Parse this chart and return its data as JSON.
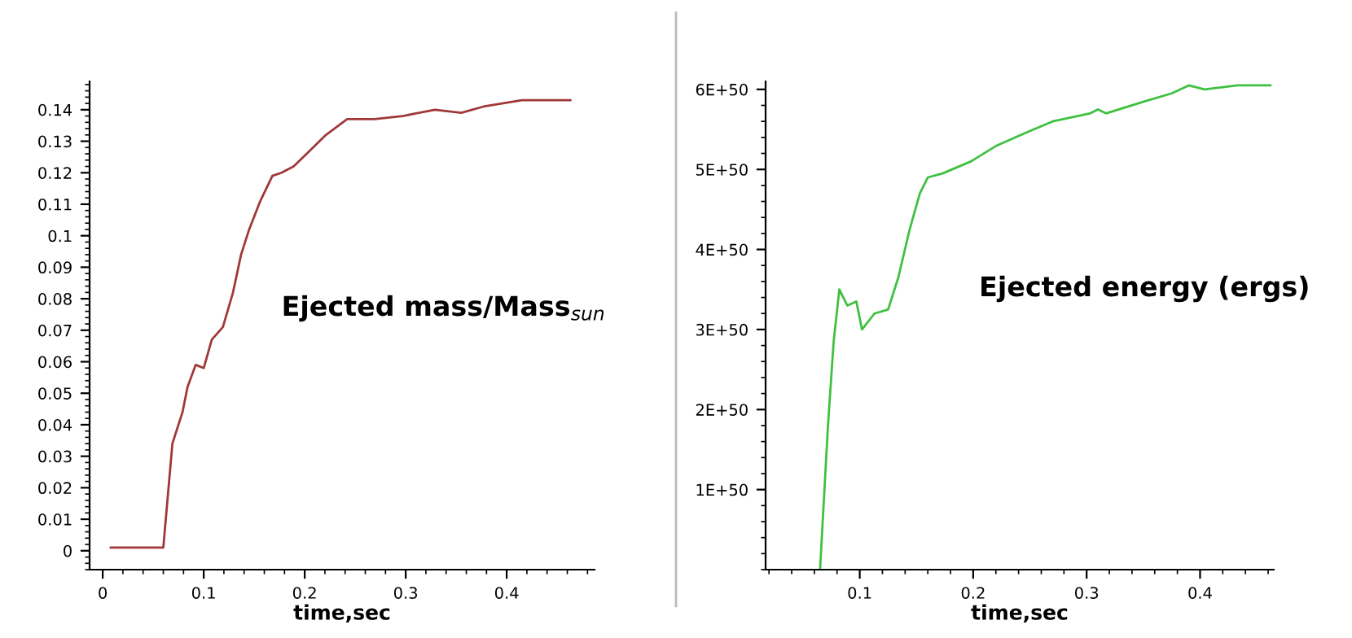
{
  "chart_data": [
    {
      "type": "line",
      "xlabel": "time,sec",
      "annotations": [
        "Ejected mass/Mass$_{sun}$"
      ],
      "xlim": [
        -0.013,
        0.487
      ],
      "ylim": [
        -0.006,
        0.149
      ],
      "xticks": [
        0,
        0.1,
        0.2,
        0.3,
        0.4
      ],
      "yticks": [
        0,
        0.01,
        0.02,
        0.03,
        0.04,
        0.05,
        0.06,
        0.07,
        0.08,
        0.09,
        0.1,
        0.11,
        0.12,
        0.13,
        0.14
      ],
      "series": [
        {
          "color": "#a03838",
          "x": [
            0.008,
            0.06,
            0.069,
            0.079,
            0.084,
            0.092,
            0.1,
            0.108,
            0.119,
            0.129,
            0.137,
            0.145,
            0.156,
            0.168,
            0.177,
            0.189,
            0.205,
            0.221,
            0.242,
            0.269,
            0.297,
            0.329,
            0.355,
            0.377,
            0.415,
            0.442,
            0.463
          ],
          "values": [
            0.001,
            0.001,
            0.034,
            0.044,
            0.052,
            0.059,
            0.058,
            0.067,
            0.071,
            0.082,
            0.094,
            0.102,
            0.111,
            0.119,
            0.12,
            0.122,
            0.127,
            0.132,
            0.137,
            0.137,
            0.138,
            0.14,
            0.139,
            0.141,
            0.143,
            0.143,
            0.143
          ]
        }
      ]
    },
    {
      "type": "line",
      "xlabel": "time,sec",
      "annotations": [
        "Ejected energy (ergs)"
      ],
      "xlim": [
        0.017,
        0.465
      ],
      "ylim": [
        0,
        6.1e+50
      ],
      "xticks": [
        0.1,
        0.2,
        0.3,
        0.4
      ],
      "yticks": [
        {
          "value": 1e+50,
          "label": "1E+50"
        },
        {
          "value": 2e+50,
          "label": "2E+50"
        },
        {
          "value": 3e+50,
          "label": "3E+50"
        },
        {
          "value": 4e+50,
          "label": "4E+50"
        },
        {
          "value": 5e+50,
          "label": "5E+50"
        },
        {
          "value": 6e+50,
          "label": "6E+50"
        }
      ],
      "series": [
        {
          "color": "#40c040",
          "x": [
            0.065,
            0.072,
            0.077,
            0.082,
            0.089,
            0.097,
            0.102,
            0.113,
            0.125,
            0.134,
            0.144,
            0.153,
            0.16,
            0.173,
            0.198,
            0.221,
            0.245,
            0.27,
            0.303,
            0.31,
            0.317,
            0.351,
            0.375,
            0.39,
            0.404,
            0.433,
            0.462
          ],
          "values": [
            0,
            1.8e+50,
            2.85e+50,
            3.5e+50,
            3.3e+50,
            3.35e+50,
            3e+50,
            3.2e+50,
            3.25e+50,
            3.65e+50,
            4.25e+50,
            4.7e+50,
            4.9e+50,
            4.95e+50,
            5.1e+50,
            5.3e+50,
            5.45e+50,
            5.6e+50,
            5.7e+50,
            5.75e+50,
            5.7e+50,
            5.85e+50,
            5.95e+50,
            6.05e+50,
            6e+50,
            6.05e+50,
            6.05e+50
          ]
        }
      ]
    }
  ]
}
